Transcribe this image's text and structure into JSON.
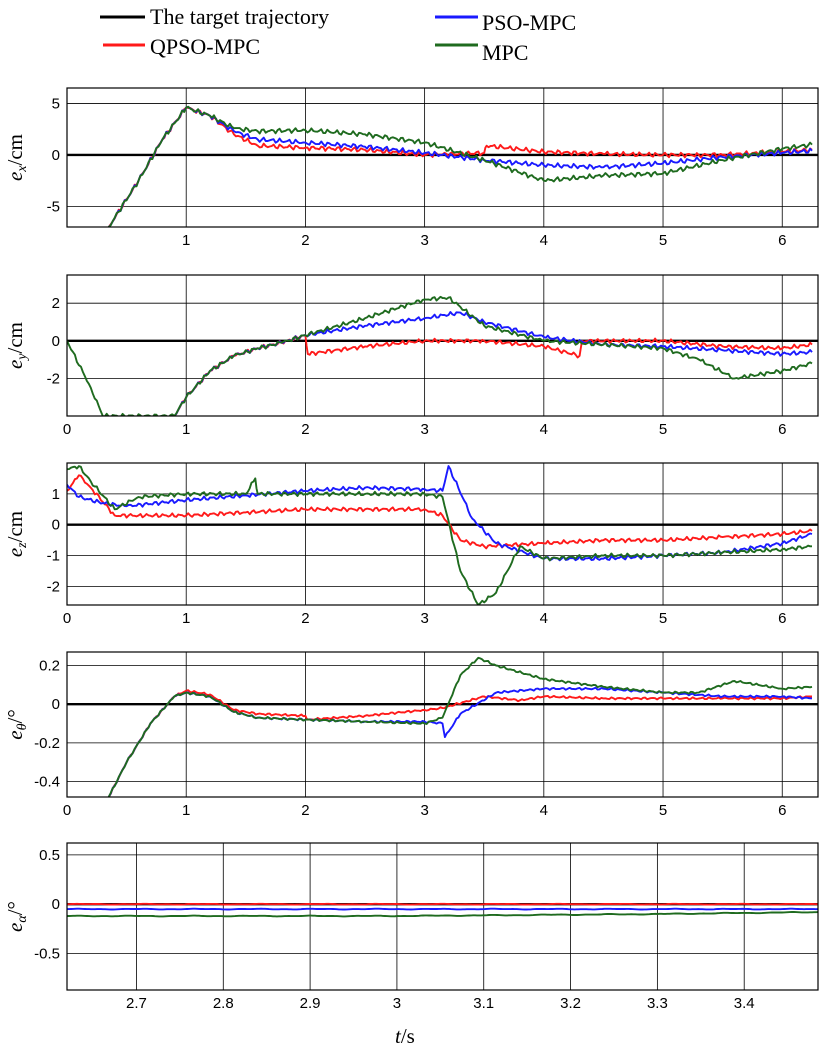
{
  "legend": [
    {
      "label": "The target trajectory",
      "color": "#000000"
    },
    {
      "label": "PSO-MPC",
      "color": "#1a1aff"
    },
    {
      "label": "QPSO-MPC",
      "color": "#ff1a1a"
    },
    {
      "label": "MPC",
      "color": "#1f6b1f"
    }
  ],
  "xlabel": {
    "italic": "t",
    "rest": "/s"
  },
  "chart_data": [
    {
      "type": "line",
      "ylabel": {
        "italic": "e",
        "sub": "x",
        "rest": "/cm"
      },
      "xlim": [
        0,
        6.3
      ],
      "ylim": [
        -7,
        6.5
      ],
      "xticks": [
        "1",
        "2",
        "3",
        "4",
        "5",
        "6"
      ],
      "xtick_values": [
        1,
        2,
        3,
        4,
        5,
        6
      ],
      "yticks": [
        "-5",
        "0",
        "5"
      ],
      "ytick_values": [
        -5,
        0,
        5
      ],
      "grid": true,
      "series": [
        {
          "name": "The target trajectory",
          "color": "#000000",
          "x": [
            0,
            6.3
          ],
          "y": [
            0,
            0
          ]
        },
        {
          "name": "QPSO-MPC",
          "color": "#ff1a1a",
          "x": [
            0.35,
            0.6,
            0.8,
            1.0,
            1.2,
            1.4,
            1.6,
            2.0,
            2.5,
            3.0,
            3.5,
            3.52,
            4.0,
            4.5,
            5.0,
            5.3,
            5.5,
            6.0,
            6.25
          ],
          "y": [
            -7,
            -2.5,
            1.5,
            4.6,
            3.8,
            2.0,
            0.9,
            0.7,
            0.5,
            0.0,
            0.2,
            0.9,
            0.3,
            0.1,
            0.0,
            0.0,
            0.0,
            0.3,
            0.5
          ]
        },
        {
          "name": "PSO-MPC",
          "color": "#1a1aff",
          "x": [
            0.35,
            0.6,
            0.8,
            1.0,
            1.2,
            1.4,
            1.6,
            2.0,
            2.5,
            3.0,
            3.5,
            4.0,
            4.5,
            5.0,
            5.5,
            6.0,
            6.25
          ],
          "y": [
            -7,
            -2.5,
            1.5,
            4.6,
            3.8,
            2.3,
            1.5,
            1.2,
            0.8,
            0.2,
            -0.5,
            -1.0,
            -1.2,
            -0.8,
            -0.2,
            0.2,
            0.4
          ]
        },
        {
          "name": "MPC",
          "color": "#1f6b1f",
          "x": [
            0.35,
            0.6,
            0.8,
            1.0,
            1.2,
            1.4,
            1.6,
            2.0,
            2.5,
            3.0,
            3.5,
            4.0,
            4.5,
            5.0,
            5.5,
            6.0,
            6.25
          ],
          "y": [
            -7,
            -2.5,
            1.5,
            4.6,
            3.8,
            2.6,
            2.3,
            2.4,
            2.0,
            1.2,
            -0.5,
            -2.5,
            -2.0,
            -1.8,
            -0.5,
            0.6,
            1.0
          ]
        }
      ]
    },
    {
      "type": "line",
      "ylabel": {
        "italic": "e",
        "sub": "y",
        "rest": "/cm"
      },
      "xlim": [
        0,
        6.3
      ],
      "ylim": [
        -4,
        3.5
      ],
      "xticks": [
        "0",
        "1",
        "2",
        "3",
        "4",
        "5",
        "6"
      ],
      "xtick_values": [
        0,
        1,
        2,
        3,
        4,
        5,
        6
      ],
      "yticks": [
        "-2",
        "0",
        "2"
      ],
      "ytick_values": [
        -2,
        0,
        2
      ],
      "grid": true,
      "series": [
        {
          "name": "The target trajectory",
          "color": "#000000",
          "x": [
            0,
            6.3
          ],
          "y": [
            0,
            0
          ]
        },
        {
          "name": "QPSO-MPC",
          "color": "#ff1a1a",
          "x": [
            0.9,
            1.0,
            1.2,
            1.4,
            1.6,
            1.8,
            2.0,
            2.02,
            2.5,
            3.0,
            3.5,
            4.0,
            4.3,
            4.32,
            5.0,
            5.5,
            6.0,
            6.25
          ],
          "y": [
            -4,
            -3,
            -1.6,
            -0.8,
            -0.4,
            -0.1,
            0.3,
            -0.7,
            -0.3,
            0.0,
            0.0,
            -0.3,
            -0.8,
            0.0,
            0.0,
            -0.3,
            -0.4,
            -0.2
          ]
        },
        {
          "name": "PSO-MPC",
          "color": "#1a1aff",
          "x": [
            0.9,
            1.0,
            1.2,
            1.4,
            1.6,
            1.8,
            2.0,
            2.5,
            3.0,
            3.3,
            3.5,
            4.0,
            4.5,
            5.0,
            5.5,
            6.0,
            6.25
          ],
          "y": [
            -4,
            -3,
            -1.6,
            -0.8,
            -0.4,
            -0.1,
            0.3,
            0.8,
            1.2,
            1.5,
            1.0,
            0.2,
            -0.2,
            -0.3,
            -0.5,
            -0.7,
            -0.6
          ]
        },
        {
          "name": "MPC",
          "color": "#1f6b1f",
          "x": [
            0.0,
            0.2,
            0.3,
            0.9,
            1.0,
            1.2,
            1.4,
            1.6,
            1.8,
            2.0,
            2.5,
            3.0,
            3.2,
            3.5,
            4.0,
            4.5,
            5.0,
            5.3,
            5.6,
            6.0,
            6.25
          ],
          "y": [
            0,
            -2.5,
            -4,
            -4,
            -3,
            -1.6,
            -0.8,
            -0.4,
            -0.1,
            0.3,
            1.2,
            2.2,
            2.3,
            0.8,
            0.0,
            -0.2,
            -0.4,
            -1.0,
            -2.0,
            -1.6,
            -1.2
          ]
        }
      ]
    },
    {
      "type": "line",
      "ylabel": {
        "italic": "e",
        "sub": "z",
        "rest": "/cm"
      },
      "xlim": [
        0,
        6.3
      ],
      "ylim": [
        -2.6,
        2.0
      ],
      "xticks": [
        "0",
        "1",
        "2",
        "3",
        "4",
        "5",
        "6"
      ],
      "xtick_values": [
        0,
        1,
        2,
        3,
        4,
        5,
        6
      ],
      "yticks": [
        "-2",
        "-1",
        "0",
        "1"
      ],
      "ytick_values": [
        -2,
        -1,
        0,
        1
      ],
      "grid": true,
      "series": [
        {
          "name": "The target trajectory",
          "color": "#000000",
          "x": [
            0,
            6.3
          ],
          "y": [
            0,
            0
          ]
        },
        {
          "name": "QPSO-MPC",
          "color": "#ff1a1a",
          "x": [
            0.0,
            0.1,
            0.2,
            0.4,
            0.6,
            1.0,
            1.5,
            2.0,
            2.5,
            3.0,
            3.15,
            3.3,
            3.5,
            4.0,
            4.5,
            5.0,
            5.5,
            6.0,
            6.25
          ],
          "y": [
            1.1,
            1.6,
            1.2,
            0.3,
            0.3,
            0.3,
            0.4,
            0.5,
            0.5,
            0.5,
            0.3,
            -0.5,
            -0.7,
            -0.6,
            -0.5,
            -0.5,
            -0.4,
            -0.3,
            -0.2
          ]
        },
        {
          "name": "PSO-MPC",
          "color": "#1a1aff",
          "x": [
            0.0,
            0.1,
            0.3,
            0.5,
            1.0,
            1.5,
            2.0,
            2.5,
            3.0,
            3.15,
            3.2,
            3.4,
            3.6,
            4.0,
            4.5,
            5.0,
            5.5,
            6.0,
            6.25
          ],
          "y": [
            1.3,
            0.9,
            0.7,
            0.6,
            0.8,
            0.95,
            1.1,
            1.2,
            1.15,
            1.1,
            1.9,
            0.2,
            -0.6,
            -1.1,
            -1.1,
            -1.0,
            -0.9,
            -0.6,
            -0.3
          ]
        },
        {
          "name": "MPC",
          "color": "#1f6b1f",
          "x": [
            0.0,
            0.1,
            0.2,
            0.4,
            0.6,
            1.0,
            1.5,
            1.58,
            1.6,
            2.0,
            2.5,
            3.0,
            3.15,
            3.3,
            3.45,
            3.6,
            3.8,
            4.0,
            4.5,
            5.0,
            5.5,
            6.0,
            6.25
          ],
          "y": [
            1.8,
            1.9,
            1.4,
            0.5,
            0.9,
            1.0,
            1.0,
            1.5,
            1.0,
            1.0,
            1.0,
            1.0,
            0.9,
            -1.5,
            -2.6,
            -2.2,
            -0.7,
            -1.1,
            -1.0,
            -1.0,
            -0.9,
            -0.8,
            -0.7
          ]
        }
      ]
    },
    {
      "type": "line",
      "ylabel": {
        "italic": "e",
        "sub": "θ",
        "rest": "/°"
      },
      "xlim": [
        0,
        6.3
      ],
      "ylim": [
        -0.48,
        0.27
      ],
      "xticks": [
        "0",
        "1",
        "2",
        "3",
        "4",
        "5",
        "6"
      ],
      "xtick_values": [
        0,
        1,
        2,
        3,
        4,
        5,
        6
      ],
      "yticks": [
        "-0.4",
        "-0.2",
        "0",
        "0.2"
      ],
      "ytick_values": [
        -0.4,
        -0.2,
        0,
        0.2
      ],
      "grid": true,
      "series": [
        {
          "name": "The target trajectory",
          "color": "#000000",
          "x": [
            0,
            6.3
          ],
          "y": [
            0,
            0
          ]
        },
        {
          "name": "QPSO-MPC",
          "color": "#ff1a1a",
          "x": [
            0.35,
            0.5,
            0.7,
            0.9,
            1.0,
            1.2,
            1.4,
            1.6,
            2.0,
            2.02,
            2.5,
            3.0,
            3.15,
            3.5,
            3.8,
            4.0,
            4.5,
            5.0,
            5.5,
            6.0,
            6.25
          ],
          "y": [
            -0.48,
            -0.3,
            -0.1,
            0.04,
            0.07,
            0.05,
            -0.03,
            -0.05,
            -0.06,
            -0.08,
            -0.06,
            -0.03,
            -0.02,
            0.04,
            0.02,
            0.04,
            0.03,
            0.03,
            0.03,
            0.03,
            0.04
          ]
        },
        {
          "name": "PSO-MPC",
          "color": "#1a1aff",
          "x": [
            0.35,
            0.5,
            0.7,
            0.9,
            1.0,
            1.2,
            1.4,
            1.6,
            2.0,
            2.5,
            3.0,
            3.15,
            3.17,
            3.3,
            3.6,
            4.0,
            4.5,
            5.0,
            5.5,
            6.0,
            6.25
          ],
          "y": [
            -0.48,
            -0.3,
            -0.1,
            0.04,
            0.06,
            0.04,
            -0.04,
            -0.07,
            -0.08,
            -0.09,
            -0.09,
            -0.1,
            -0.17,
            -0.05,
            0.06,
            0.08,
            0.08,
            0.06,
            0.04,
            0.04,
            0.03
          ]
        },
        {
          "name": "MPC",
          "color": "#1f6b1f",
          "x": [
            0.35,
            0.5,
            0.7,
            0.9,
            1.0,
            1.2,
            1.4,
            1.6,
            2.0,
            2.5,
            3.0,
            3.15,
            3.3,
            3.45,
            3.6,
            4.0,
            4.5,
            5.0,
            5.3,
            5.6,
            6.0,
            6.25
          ],
          "y": [
            -0.48,
            -0.3,
            -0.1,
            0.04,
            0.06,
            0.04,
            -0.04,
            -0.07,
            -0.08,
            -0.09,
            -0.1,
            -0.07,
            0.15,
            0.24,
            0.2,
            0.13,
            0.09,
            0.06,
            0.06,
            0.12,
            0.08,
            0.09
          ]
        }
      ]
    },
    {
      "type": "line",
      "ylabel": {
        "italic": "e",
        "sub": "α",
        "rest": "/°"
      },
      "xlim": [
        2.62,
        3.485
      ],
      "ylim": [
        -0.87,
        0.62
      ],
      "xticks": [
        "2.7",
        "2.8",
        "2.9",
        "3",
        "3.1",
        "3.2",
        "3.3",
        "3.4"
      ],
      "xtick_values": [
        2.7,
        2.8,
        2.9,
        3.0,
        3.1,
        3.2,
        3.3,
        3.4
      ],
      "yticks": [
        "-0.5",
        "0",
        "0.5"
      ],
      "ytick_values": [
        -0.5,
        0,
        0.5
      ],
      "grid": true,
      "series": [
        {
          "name": "The target trajectory",
          "color": "#000000",
          "x": [
            2.62,
            3.485
          ],
          "y": [
            0,
            0
          ]
        },
        {
          "name": "QPSO-MPC",
          "color": "#ff1a1a",
          "x": [
            2.62,
            3.485
          ],
          "y": [
            0.0,
            0.0
          ]
        },
        {
          "name": "PSO-MPC",
          "color": "#1a1aff",
          "x": [
            2.62,
            3.0,
            3.485
          ],
          "y": [
            -0.05,
            -0.05,
            -0.05
          ]
        },
        {
          "name": "MPC",
          "color": "#1f6b1f",
          "x": [
            2.62,
            3.0,
            3.3,
            3.485
          ],
          "y": [
            -0.12,
            -0.12,
            -0.1,
            -0.08
          ]
        }
      ]
    }
  ]
}
